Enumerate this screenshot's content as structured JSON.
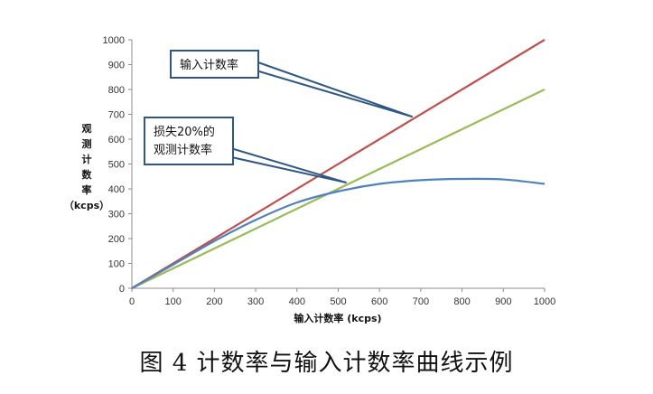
{
  "caption": "图 4  计数率与输入计数率曲线示例",
  "chart_data": {
    "type": "line",
    "xlabel": "输入计数率 (kcps)",
    "ylabel_chars": [
      "观",
      "测",
      "计",
      "数",
      "率",
      "（kcps）"
    ],
    "xlim": [
      0,
      1000
    ],
    "ylim": [
      0,
      1000
    ],
    "x_ticks": [
      0,
      100,
      200,
      300,
      400,
      500,
      600,
      700,
      800,
      900,
      1000
    ],
    "y_ticks": [
      0,
      100,
      200,
      300,
      400,
      500,
      600,
      700,
      800,
      900,
      1000
    ],
    "grid": false,
    "series": [
      {
        "color": "#c0504d",
        "x": [
          0,
          1000
        ],
        "y": [
          0,
          1000
        ]
      },
      {
        "color": "#9bbb59",
        "x": [
          0,
          1000
        ],
        "y": [
          0,
          800
        ]
      },
      {
        "color": "#4f81bd",
        "x": [
          0,
          100,
          200,
          300,
          400,
          500,
          600,
          700,
          800,
          900,
          1000
        ],
        "y": [
          0,
          95,
          190,
          275,
          345,
          390,
          420,
          435,
          440,
          438,
          420
        ]
      }
    ],
    "annotations": [
      {
        "text_lines": [
          "输入计数率"
        ],
        "target": [
          680,
          690
        ]
      },
      {
        "text_lines": [
          "损失20%的",
          "观测计数率"
        ],
        "target": [
          520,
          425
        ]
      }
    ]
  }
}
